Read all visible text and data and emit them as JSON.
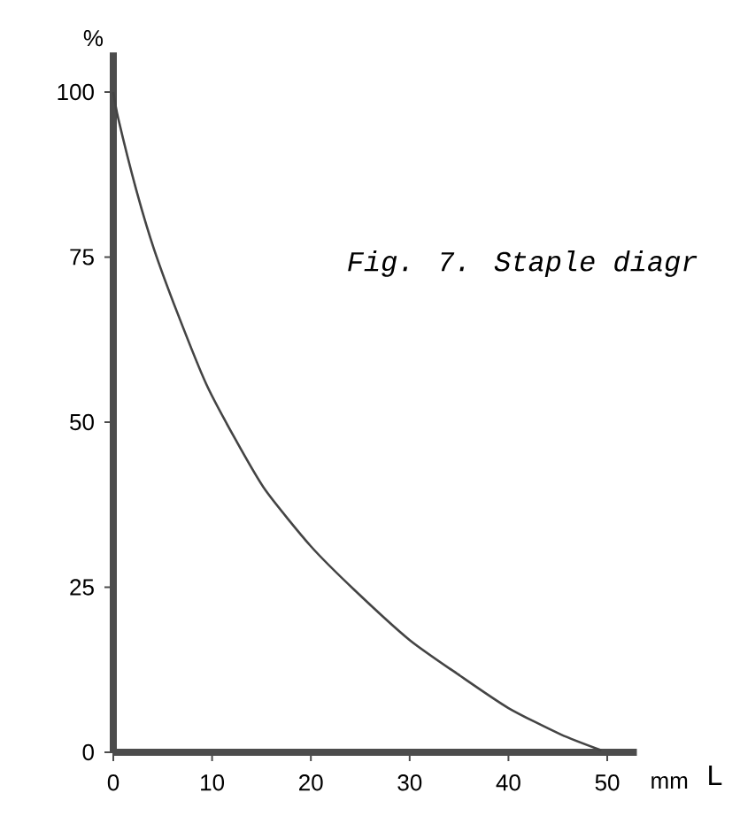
{
  "chart_data": {
    "type": "line",
    "x": [
      0,
      0.5,
      2.3,
      4.1,
      6.5,
      9.4,
      12.4,
      15.4,
      20,
      24.4,
      30,
      35.1,
      40,
      45.3,
      49.4
    ],
    "series": [
      {
        "color": "#444444",
        "values": [
          100,
          96,
          85.3,
          76.3,
          66.5,
          55.8,
          47.3,
          39.7,
          31.2,
          24.6,
          17,
          11.6,
          6.7,
          2.7,
          0.3
        ]
      }
    ],
    "xlim": [
      0,
      53
    ],
    "ylim": [
      0,
      106
    ],
    "xticks": [
      0,
      10,
      20,
      30,
      40,
      50
    ],
    "yticks": [
      0,
      25,
      50,
      75,
      100
    ],
    "xlabel": "L",
    "ylabel": "%",
    "annotations": [
      "Fig. 7. Staple diagr",
      "mm"
    ],
    "grid": false,
    "marker": "none",
    "line_style": "solid"
  }
}
